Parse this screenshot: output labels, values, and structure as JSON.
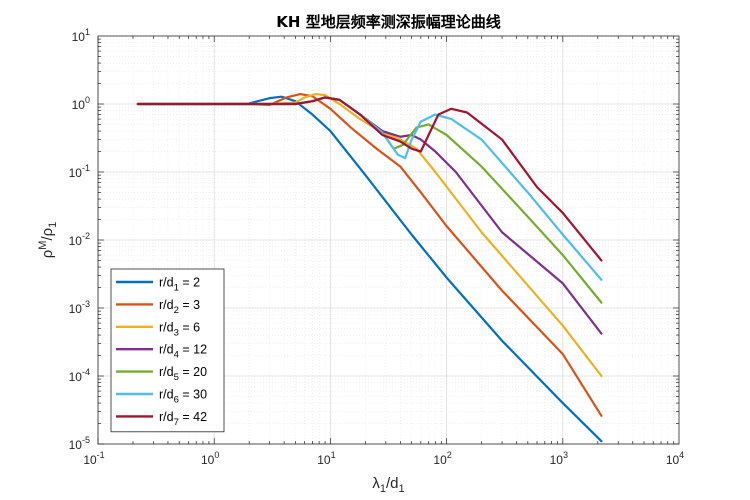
{
  "chart_data": {
    "type": "line",
    "title": "KH 型地层频率测深振幅理论曲线",
    "xlabel": {
      "base": "λ",
      "sub1": "1",
      "mid": "/d",
      "sub2": "1"
    },
    "ylabel": {
      "base": "ρ",
      "sup": "M",
      "mid": "/ρ",
      "sub": "1"
    },
    "x_scale": "log",
    "y_scale": "log",
    "xlim": [
      0.1,
      10000
    ],
    "ylim": [
      1e-05,
      10
    ],
    "x_ticks": [
      {
        "value": 0.1,
        "base": "10",
        "exp": "-1"
      },
      {
        "value": 1,
        "base": "10",
        "exp": "0"
      },
      {
        "value": 10,
        "base": "10",
        "exp": "1"
      },
      {
        "value": 100,
        "base": "10",
        "exp": "2"
      },
      {
        "value": 1000,
        "base": "10",
        "exp": "3"
      },
      {
        "value": 10000,
        "base": "10",
        "exp": "4"
      }
    ],
    "y_ticks": [
      {
        "value": 1e-05,
        "base": "10",
        "exp": "-5"
      },
      {
        "value": 0.0001,
        "base": "10",
        "exp": "-4"
      },
      {
        "value": 0.001,
        "base": "10",
        "exp": "-3"
      },
      {
        "value": 0.01,
        "base": "10",
        "exp": "-2"
      },
      {
        "value": 0.1,
        "base": "10",
        "exp": "-1"
      },
      {
        "value": 1,
        "base": "10",
        "exp": "0"
      },
      {
        "value": 10,
        "base": "10",
        "exp": "1"
      }
    ],
    "grid": true,
    "legend_position": "bottom-left",
    "series": [
      {
        "label": "r/d",
        "sub": "1",
        "value": "= 2",
        "color": "#0072BD",
        "points": [
          [
            0.22,
            1.0
          ],
          [
            1,
            1.0
          ],
          [
            2,
            1.02
          ],
          [
            3,
            1.22
          ],
          [
            3.8,
            1.28
          ],
          [
            5,
            1.1
          ],
          [
            7,
            0.7
          ],
          [
            10,
            0.4
          ],
          [
            20,
            0.09
          ],
          [
            50,
            0.012
          ],
          [
            100,
            0.0028
          ],
          [
            300,
            0.00033
          ],
          [
            1000,
            4e-05
          ],
          [
            2150,
            1.1e-05
          ]
        ]
      },
      {
        "label": "r/d",
        "sub": "2",
        "value": "= 3",
        "color": "#D95319",
        "points": [
          [
            0.22,
            1.0
          ],
          [
            1,
            1.0
          ],
          [
            2,
            1.0
          ],
          [
            3,
            0.97
          ],
          [
            4.2,
            1.25
          ],
          [
            5.5,
            1.4
          ],
          [
            7,
            1.3
          ],
          [
            10,
            0.85
          ],
          [
            15,
            0.45
          ],
          [
            25,
            0.22
          ],
          [
            40,
            0.12
          ],
          [
            60,
            0.05
          ],
          [
            100,
            0.016
          ],
          [
            300,
            0.0018
          ],
          [
            1000,
            0.00021
          ],
          [
            2150,
            2.6e-05
          ]
        ]
      },
      {
        "label": "r/d",
        "sub": "3",
        "value": "= 6",
        "color": "#EDB120",
        "points": [
          [
            0.22,
            1.0
          ],
          [
            1,
            1.0
          ],
          [
            3,
            1.0
          ],
          [
            5,
            1.05
          ],
          [
            6,
            1.25
          ],
          [
            7.5,
            1.4
          ],
          [
            9,
            1.35
          ],
          [
            12,
            1.0
          ],
          [
            18,
            0.6
          ],
          [
            28,
            0.38
          ],
          [
            40,
            0.3
          ],
          [
            55,
            0.22
          ],
          [
            80,
            0.1
          ],
          [
            200,
            0.013
          ],
          [
            1000,
            0.00055
          ],
          [
            2150,
            0.0001
          ]
        ]
      },
      {
        "label": "r/d",
        "sub": "4",
        "value": "= 12",
        "color": "#7E2F8E",
        "points": [
          [
            0.22,
            1.0
          ],
          [
            2,
            1.0
          ],
          [
            5,
            1.0
          ],
          [
            7,
            1.1
          ],
          [
            9,
            1.25
          ],
          [
            12,
            1.15
          ],
          [
            18,
            0.7
          ],
          [
            28,
            0.4
          ],
          [
            40,
            0.33
          ],
          [
            50,
            0.35
          ],
          [
            60,
            0.3
          ],
          [
            80,
            0.2
          ],
          [
            120,
            0.1
          ],
          [
            300,
            0.013
          ],
          [
            1000,
            0.0023
          ],
          [
            2150,
            0.00042
          ]
        ]
      },
      {
        "label": "r/d",
        "sub": "5",
        "value": "= 20",
        "color": "#77AC30",
        "points": [
          [
            0.22,
            1.0
          ],
          [
            2,
            1.0
          ],
          [
            5,
            1.0
          ],
          [
            7,
            1.1
          ],
          [
            9,
            1.25
          ],
          [
            12,
            1.15
          ],
          [
            18,
            0.7
          ],
          [
            28,
            0.38
          ],
          [
            35,
            0.22
          ],
          [
            42,
            0.25
          ],
          [
            55,
            0.45
          ],
          [
            70,
            0.5
          ],
          [
            100,
            0.35
          ],
          [
            200,
            0.12
          ],
          [
            500,
            0.022
          ],
          [
            1000,
            0.006
          ],
          [
            2150,
            0.0012
          ]
        ]
      },
      {
        "label": "r/d",
        "sub": "6",
        "value": "= 30",
        "color": "#4DBEEE",
        "points": [
          [
            0.22,
            1.0
          ],
          [
            2,
            1.0
          ],
          [
            5,
            1.0
          ],
          [
            7,
            1.1
          ],
          [
            9,
            1.25
          ],
          [
            12,
            1.15
          ],
          [
            18,
            0.7
          ],
          [
            28,
            0.38
          ],
          [
            38,
            0.18
          ],
          [
            44,
            0.16
          ],
          [
            50,
            0.3
          ],
          [
            60,
            0.55
          ],
          [
            80,
            0.7
          ],
          [
            110,
            0.6
          ],
          [
            200,
            0.3
          ],
          [
            500,
            0.05
          ],
          [
            1000,
            0.012
          ],
          [
            2150,
            0.0026
          ]
        ]
      },
      {
        "label": "r/d",
        "sub": "7",
        "value": "= 42",
        "color": "#A2142F",
        "points": [
          [
            0.22,
            1.0
          ],
          [
            2,
            1.0
          ],
          [
            5,
            1.0
          ],
          [
            7,
            1.1
          ],
          [
            9,
            1.25
          ],
          [
            12,
            1.15
          ],
          [
            18,
            0.7
          ],
          [
            28,
            0.35
          ],
          [
            40,
            0.28
          ],
          [
            50,
            0.22
          ],
          [
            60,
            0.2
          ],
          [
            70,
            0.35
          ],
          [
            85,
            0.7
          ],
          [
            110,
            0.85
          ],
          [
            150,
            0.75
          ],
          [
            300,
            0.3
          ],
          [
            600,
            0.06
          ],
          [
            1000,
            0.025
          ],
          [
            2150,
            0.005
          ]
        ]
      }
    ]
  }
}
